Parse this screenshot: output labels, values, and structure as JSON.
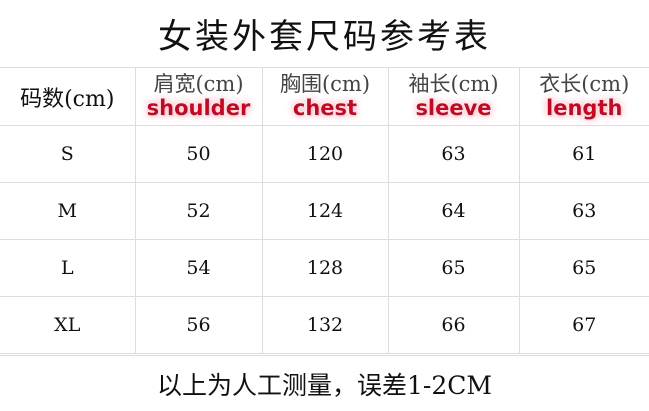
{
  "title": "女装外套尺码参考表",
  "table": {
    "size_header": "码数(cm)",
    "columns": [
      {
        "original": "肩宽(cm)",
        "overlay": "shoulder"
      },
      {
        "original": "胸围(cm)",
        "overlay": "chest"
      },
      {
        "original": "袖长(cm)",
        "overlay": "sleeve"
      },
      {
        "original": "衣长(cm)",
        "overlay": "length"
      }
    ],
    "rows": [
      {
        "size": "S",
        "values": [
          "50",
          "120",
          "63",
          "61"
        ]
      },
      {
        "size": "M",
        "values": [
          "52",
          "124",
          "64",
          "63"
        ]
      },
      {
        "size": "L",
        "values": [
          "54",
          "128",
          "65",
          "65"
        ]
      },
      {
        "size": "XL",
        "values": [
          "56",
          "132",
          "66",
          "67"
        ]
      }
    ]
  },
  "footer": "以上为人工测量，误差1-2CM",
  "colors": {
    "overlay_text": "#d5001c",
    "grid": "#dddddd"
  }
}
